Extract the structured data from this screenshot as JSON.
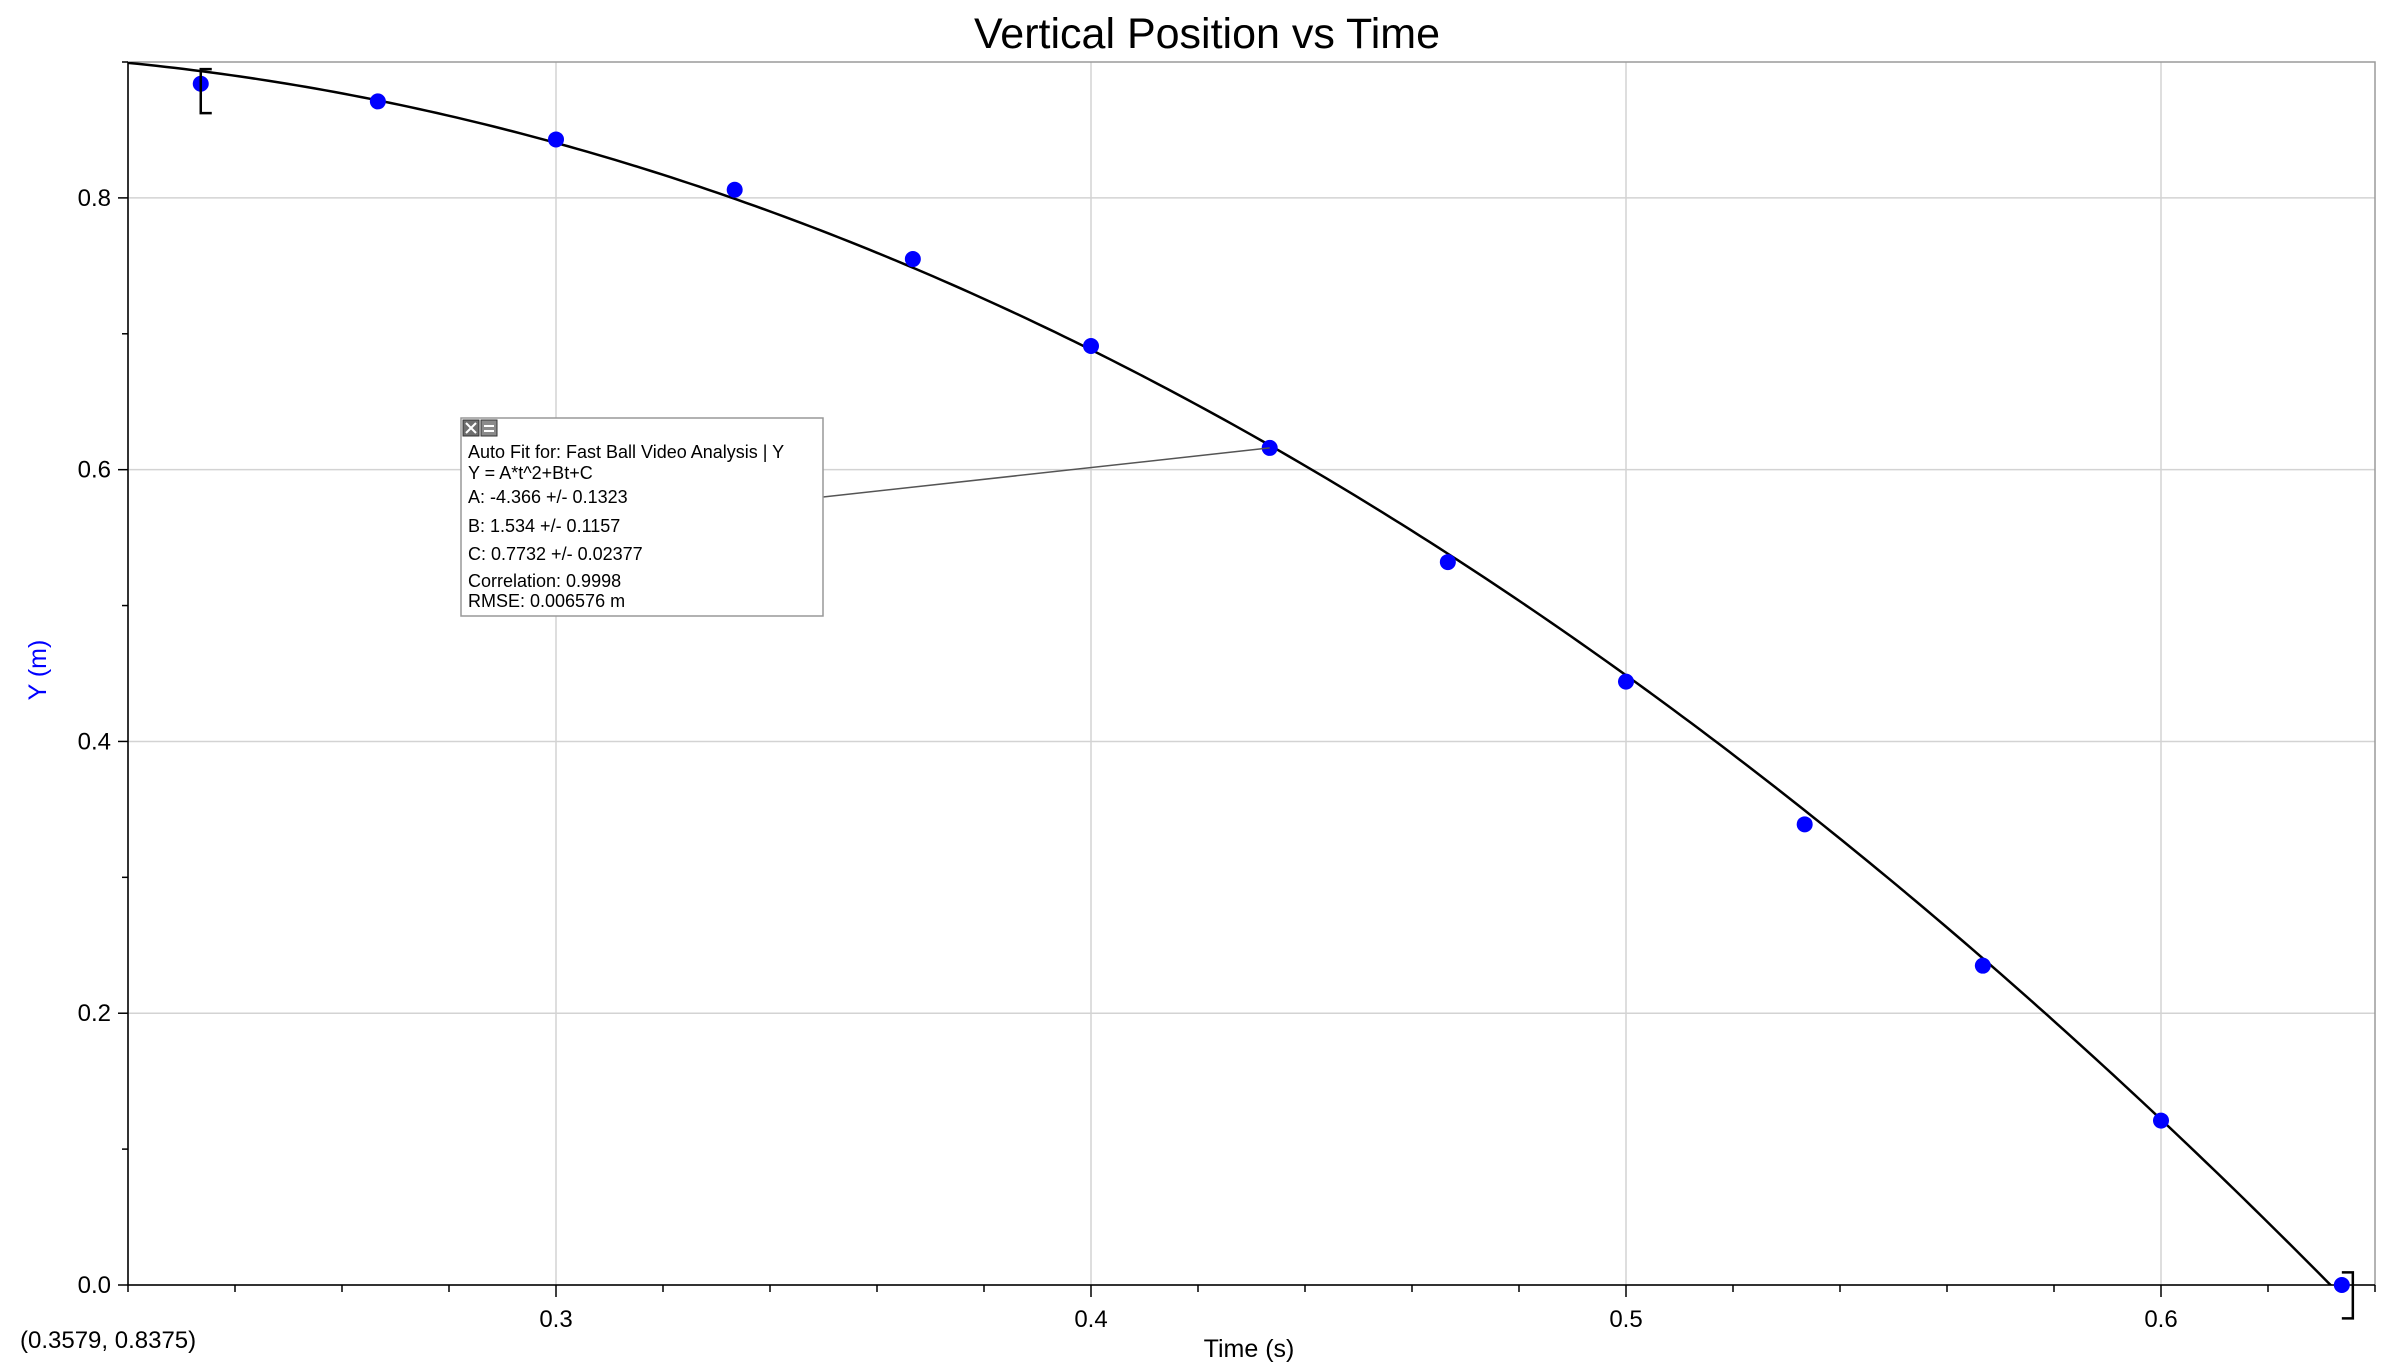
{
  "chart_data": {
    "type": "scatter",
    "title": "Vertical Position vs Time",
    "xlabel": "Time (s)",
    "ylabel": "Y (m)",
    "xlim": [
      0.22,
      0.64
    ],
    "ylim": [
      0.0,
      0.9
    ],
    "x_ticks": [
      0.3,
      0.4,
      0.5,
      0.6
    ],
    "x_tick_labels": [
      "0.3",
      "0.4",
      "0.5",
      "0.6"
    ],
    "y_ticks": [
      0.0,
      0.2,
      0.4,
      0.6,
      0.8
    ],
    "y_tick_labels": [
      "0.0",
      "0.2",
      "0.4",
      "0.6",
      "0.8"
    ],
    "grid": true,
    "series": [
      {
        "x": [
          0.2336,
          0.2667,
          0.3,
          0.3334,
          0.3667,
          0.4,
          0.4334,
          0.4667,
          0.5,
          0.5334,
          0.5667,
          0.6,
          0.6338
        ],
        "y": [
          0.884,
          0.871,
          0.843,
          0.806,
          0.755,
          0.691,
          0.616,
          0.532,
          0.444,
          0.339,
          0.235,
          0.121,
          0.0
        ],
        "color": "#0000ff"
      }
    ],
    "fit": {
      "model": "Y = A*t^2+Bt+C",
      "A": -4.366,
      "B": 1.534,
      "C": 0.7732,
      "range": [
        0.2336,
        0.6338
      ],
      "color": "#000000"
    },
    "point_color": "#0000ff",
    "ylabel_color": "#0000ff"
  },
  "fit_box": {
    "header": "Auto Fit for: Fast Ball Video Analysis | Y",
    "equation": "Y = A*t^2+Bt+C",
    "a_line": "A: -4.366 +/- 0.1323",
    "b_line": "B: 1.534 +/- 0.1157",
    "c_line": "C: 0.7732 +/- 0.02377",
    "correlation": "Correlation: 0.9998",
    "rmse": "RMSE: 0.006576 m",
    "close_icon": "close-x-icon",
    "menu_icon": "options-menu-icon",
    "pointer_x": 0.4334,
    "pointer_y": 0.616
  },
  "coordinates_readout": "(0.3579, 0.8375)"
}
